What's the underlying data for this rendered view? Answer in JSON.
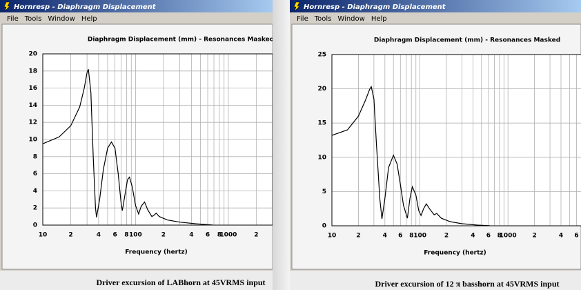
{
  "windows": [
    {
      "title": "Hornresp - Diaphragm Displacement",
      "menu": [
        "File",
        "Tools",
        "Window",
        "Help"
      ],
      "caption": "Driver excursion of LABhorn at 45VRMS input"
    },
    {
      "title": "Hornresp - Diaphragm Displacement",
      "menu": [
        "File",
        "Tools",
        "Window",
        "Help"
      ],
      "caption": "Driver excursion of 12 π basshorn at 45VRMS input"
    }
  ],
  "chart_data": [
    {
      "type": "line",
      "title": "Diaphragm Displacement (mm) - Resonances Masked",
      "xlabel": "Frequency (hertz)",
      "xscale": "log",
      "xlim": [
        10,
        3000
      ],
      "xticks": [
        10,
        {
          "value": 20,
          "label": "2"
        },
        {
          "value": 40,
          "label": "4"
        },
        {
          "value": 60,
          "label": "6"
        },
        {
          "value": 80,
          "label": "8"
        },
        100,
        {
          "value": 200,
          "label": "2"
        },
        {
          "value": 400,
          "label": "4"
        },
        {
          "value": 600,
          "label": "6"
        },
        {
          "value": 800,
          "label": "8"
        },
        1000,
        {
          "value": 2000,
          "label": "2"
        }
      ],
      "xminorticks": [
        30,
        50,
        70,
        90,
        300,
        500,
        700,
        900,
        3000
      ],
      "ylim": [
        0,
        20
      ],
      "yticks": [
        0,
        2,
        4,
        6,
        8,
        10,
        12,
        14,
        16,
        18,
        20
      ],
      "grid": true,
      "x": [
        10,
        15,
        20,
        25,
        28,
        30,
        31,
        33,
        35,
        37,
        38,
        41,
        45,
        50,
        55,
        60,
        65,
        70,
        72,
        76,
        82,
        86,
        92,
        100,
        108,
        115,
        125,
        135,
        150,
        160,
        167,
        180,
        220,
        300,
        450,
        600,
        675
      ],
      "series": [
        {
          "color": "#000000",
          "values": [
            9.5,
            10.3,
            11.6,
            13.8,
            16,
            17.8,
            18.2,
            15.5,
            8,
            2,
            0.9,
            3,
            6.5,
            9,
            9.7,
            9,
            6,
            2.5,
            1.7,
            3.2,
            5.3,
            5.6,
            4.5,
            2.3,
            1.3,
            2.2,
            2.7,
            1.8,
            1,
            1.2,
            1.4,
            1,
            0.6,
            0.35,
            0.15,
            0.05,
            0.02
          ]
        }
      ]
    },
    {
      "type": "line",
      "title": "Diaphragm Displacement (mm) - Resonances Masked",
      "xlabel": "Frequency (hertz)",
      "xscale": "log",
      "xlim": [
        10,
        7000
      ],
      "xticks": [
        10,
        {
          "value": 20,
          "label": "2"
        },
        {
          "value": 40,
          "label": "4"
        },
        {
          "value": 60,
          "label": "6"
        },
        {
          "value": 80,
          "label": "8"
        },
        100,
        {
          "value": 200,
          "label": "2"
        },
        {
          "value": 400,
          "label": "4"
        },
        {
          "value": 600,
          "label": "6"
        },
        {
          "value": 800,
          "label": "8"
        },
        1000,
        {
          "value": 2000,
          "label": "2"
        },
        {
          "value": 4000,
          "label": "4"
        },
        {
          "value": 6000,
          "label": "6"
        }
      ],
      "xminorticks": [
        30,
        50,
        70,
        90,
        300,
        500,
        700,
        900,
        3000,
        5000
      ],
      "ylim": [
        0,
        25
      ],
      "yticks": [
        0,
        5,
        10,
        15,
        20,
        25
      ],
      "grid": true,
      "x": [
        10,
        15,
        20,
        24,
        27,
        28,
        30,
        32,
        35,
        37,
        40,
        44,
        50,
        55,
        60,
        65,
        72,
        77,
        82,
        90,
        97,
        103,
        110,
        118,
        130,
        145,
        155,
        175,
        220,
        300,
        450,
        620
      ],
      "series": [
        {
          "color": "#000000",
          "values": [
            13.2,
            14,
            16,
            18.3,
            20,
            20.3,
            18.5,
            12,
            4,
            1,
            4,
            8.5,
            10.3,
            9,
            6,
            3,
            1.1,
            4,
            5.7,
            4.5,
            2.2,
            1.5,
            2.5,
            3.2,
            2.4,
            1.6,
            1.8,
            1.1,
            0.6,
            0.3,
            0.1,
            0.02
          ]
        }
      ]
    }
  ]
}
